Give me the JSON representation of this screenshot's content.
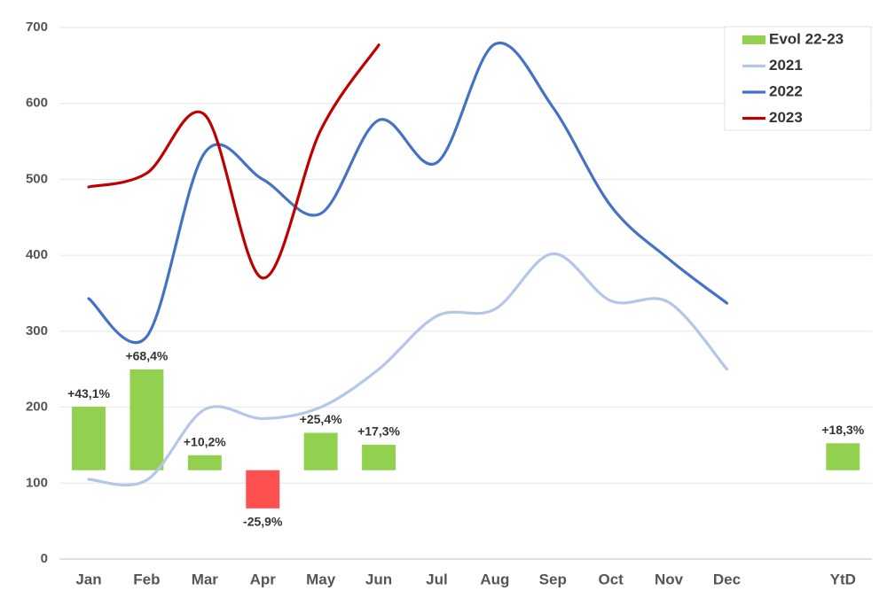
{
  "chart_data": {
    "type": "line",
    "categories": [
      "Jan",
      "Feb",
      "Mar",
      "Apr",
      "May",
      "Jun",
      "Jul",
      "Aug",
      "Sep",
      "Oct",
      "Nov",
      "Dec",
      null,
      "YtD"
    ],
    "ylim": [
      0,
      700
    ],
    "yticks": [
      0,
      100,
      200,
      300,
      400,
      500,
      600,
      700
    ],
    "y2lim": [
      -60.3,
      300.5
    ],
    "grid": true,
    "legend": "top-right",
    "series": [
      {
        "name": "Evol 22-23",
        "type": "bar",
        "axis": "y2",
        "color": "#92d050",
        "negative_color": "#ff5050",
        "values": [
          43.1,
          68.4,
          10.2,
          -25.9,
          25.4,
          17.3,
          null,
          null,
          null,
          null,
          null,
          null,
          null,
          18.3
        ],
        "value_labels": [
          "+43,1%",
          "+68,4%",
          "+10,2%",
          "-25,9%",
          "+25,4%",
          "+17,3%",
          null,
          null,
          null,
          null,
          null,
          null,
          null,
          "+18,3%"
        ]
      },
      {
        "name": "2021",
        "type": "line",
        "color": "#b4c7e7",
        "values": [
          105,
          104,
          197,
          185,
          200,
          250,
          320,
          329,
          402,
          340,
          338,
          250,
          null,
          null
        ]
      },
      {
        "name": "2022",
        "type": "line",
        "color": "#4472c4",
        "values": [
          343,
          293,
          535,
          500,
          455,
          578,
          522,
          678,
          595,
          465,
          395,
          337,
          null,
          null
        ]
      },
      {
        "name": "2023",
        "type": "line",
        "color": "#c00000",
        "values": [
          490,
          508,
          585,
          370,
          565,
          677,
          null,
          null,
          null,
          null,
          null,
          null,
          null,
          null
        ]
      }
    ]
  }
}
